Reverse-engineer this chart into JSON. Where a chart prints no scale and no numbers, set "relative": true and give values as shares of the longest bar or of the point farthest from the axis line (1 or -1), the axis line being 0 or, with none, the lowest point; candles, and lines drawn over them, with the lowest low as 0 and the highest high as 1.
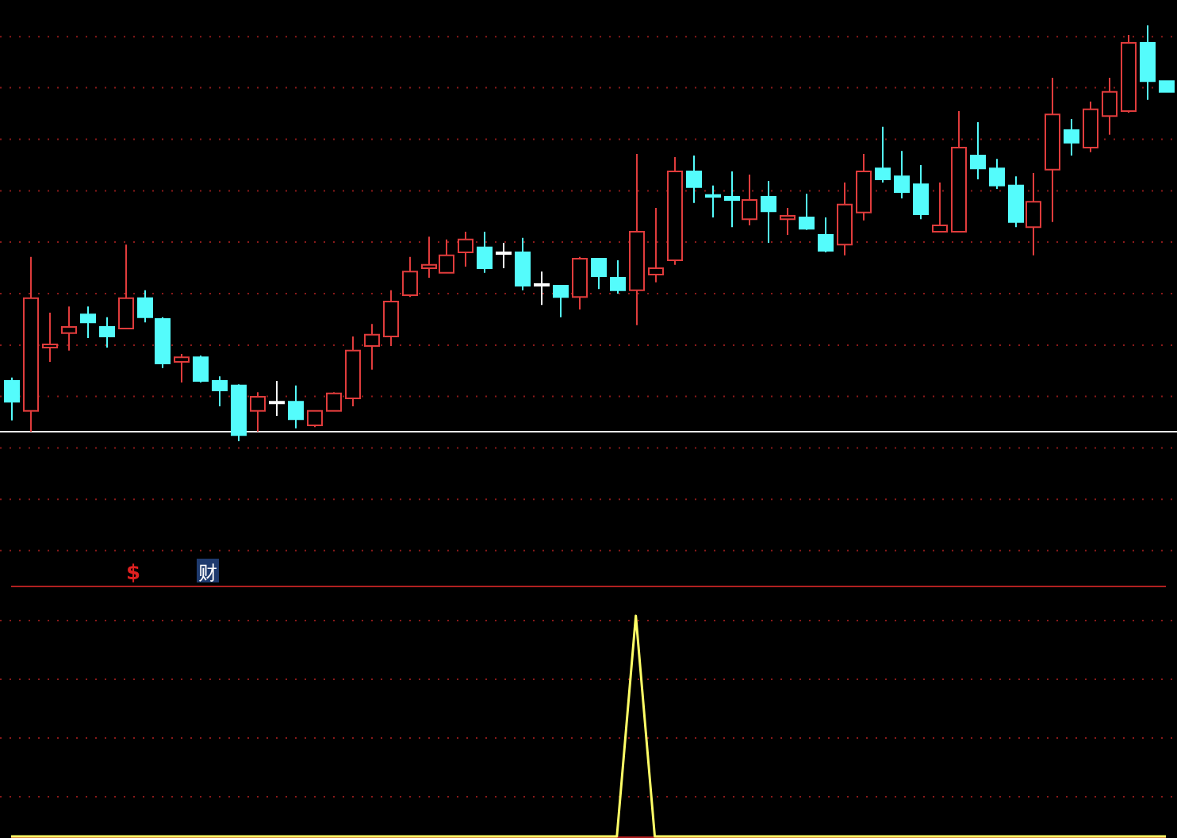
{
  "chart_data": [
    {
      "type": "candlestick",
      "relative": true,
      "categories": [
        null,
        null,
        null,
        null,
        null,
        null,
        null,
        null,
        null,
        null,
        null,
        null,
        null,
        null,
        null,
        null,
        null,
        null,
        null,
        null,
        null,
        null,
        null,
        null,
        null,
        null,
        null,
        null,
        null,
        null,
        null,
        null,
        null,
        null,
        null,
        null,
        null,
        null,
        null,
        null,
        null,
        null,
        null,
        null,
        null,
        null,
        null,
        null,
        null,
        null,
        null,
        null,
        null,
        null,
        null,
        null,
        null,
        null,
        null,
        null,
        null,
        null
      ],
      "ohlc": [
        [
          0.145,
          0.153,
          0.05,
          0.095
        ],
        [
          0.073,
          0.443,
          0.023,
          0.344
        ],
        [
          0.225,
          0.309,
          0.191,
          0.233
        ],
        [
          0.26,
          0.324,
          0.218,
          0.275
        ],
        [
          0.305,
          0.324,
          0.248,
          0.286
        ],
        [
          0.275,
          0.298,
          0.225,
          0.252
        ],
        [
          0.271,
          0.473,
          0.271,
          0.344
        ],
        [
          0.344,
          0.363,
          0.286,
          0.298
        ],
        [
          0.294,
          0.298,
          0.176,
          0.187
        ],
        [
          0.191,
          0.21,
          0.141,
          0.202
        ],
        [
          0.202,
          0.206,
          0.141,
          0.145
        ],
        [
          0.145,
          0.156,
          0.084,
          0.122
        ],
        [
          0.134,
          0.137,
          0,
          0.015
        ],
        [
          0.073,
          0.118,
          0.023,
          0.107
        ],
        [
          0.095,
          0.145,
          0.061,
          0.095
        ],
        [
          0.095,
          0.134,
          0.031,
          0.053
        ],
        [
          0.038,
          0.073,
          0.034,
          0.073
        ],
        [
          0.073,
          0.118,
          0.073,
          0.115
        ],
        [
          0.103,
          0.252,
          0.084,
          0.218
        ],
        [
          0.229,
          0.282,
          0.172,
          0.256
        ],
        [
          0.252,
          0.363,
          0.229,
          0.336
        ],
        [
          0.351,
          0.443,
          0.347,
          0.408
        ],
        [
          0.416,
          0.492,
          0.393,
          0.424
        ],
        [
          0.405,
          0.485,
          0.405,
          0.447
        ],
        [
          0.454,
          0.504,
          0.42,
          0.485
        ],
        [
          0.466,
          0.504,
          0.405,
          0.416
        ],
        [
          0.454,
          0.477,
          0.416,
          0.454
        ],
        [
          0.454,
          0.489,
          0.363,
          0.374
        ],
        [
          0.378,
          0.408,
          0.328,
          0.378
        ],
        [
          0.374,
          0.374,
          0.298,
          0.347
        ],
        [
          0.347,
          0.443,
          0.317,
          0.439
        ],
        [
          0.439,
          0.439,
          0.366,
          0.397
        ],
        [
          0.393,
          0.435,
          0.355,
          0.363
        ],
        [
          0.363,
          0.691,
          0.279,
          0.504
        ],
        [
          0.401,
          0.561,
          0.382,
          0.416
        ],
        [
          0.435,
          0.683,
          0.424,
          0.649
        ],
        [
          0.649,
          0.687,
          0.573,
          0.611
        ],
        [
          0.592,
          0.615,
          0.538,
          0.588
        ],
        [
          0.588,
          0.649,
          0.515,
          0.58
        ],
        [
          0.534,
          0.641,
          0.519,
          0.58
        ],
        [
          0.588,
          0.626,
          0.477,
          0.553
        ],
        [
          0.534,
          0.561,
          0.496,
          0.542
        ],
        [
          0.538,
          0.595,
          0.508,
          0.511
        ],
        [
          0.496,
          0.538,
          0.454,
          0.458
        ],
        [
          0.473,
          0.622,
          0.447,
          0.569
        ],
        [
          0.55,
          0.691,
          0.531,
          0.649
        ],
        [
          0.656,
          0.756,
          0.622,
          0.63
        ],
        [
          0.637,
          0.698,
          0.584,
          0.599
        ],
        [
          0.618,
          0.664,
          0.534,
          0.546
        ],
        [
          0.504,
          0.622,
          0.504,
          0.519
        ],
        [
          0.504,
          0.794,
          0.504,
          0.706
        ],
        [
          0.687,
          0.767,
          0.63,
          0.656
        ],
        [
          0.656,
          0.679,
          0.607,
          0.615
        ],
        [
          0.615,
          0.637,
          0.515,
          0.527
        ],
        [
          0.515,
          0.645,
          0.447,
          0.576
        ],
        [
          0.653,
          0.874,
          0.527,
          0.786
        ],
        [
          0.748,
          0.775,
          0.687,
          0.718
        ],
        [
          0.706,
          0.817,
          0.695,
          0.798
        ],
        [
          0.782,
          0.874,
          0.737,
          0.84
        ],
        [
          0.794,
          0.977,
          0.79,
          0.958
        ],
        [
          0.958,
          1,
          0.821,
          0.866
        ],
        [
          0.866,
          0.866,
          0.84,
          0.84
        ]
      ],
      "colors": [
        "#54fcfc",
        "#e03c3c",
        "#e03c3c",
        "#e03c3c",
        "#54fcfc",
        "#54fcfc",
        "#e03c3c",
        "#54fcfc",
        "#54fcfc",
        "#e03c3c",
        "#54fcfc",
        "#54fcfc",
        "#54fcfc",
        "#e03c3c",
        "#ffffff",
        "#54fcfc",
        "#e03c3c",
        "#e03c3c",
        "#e03c3c",
        "#e03c3c",
        "#e03c3c",
        "#e03c3c",
        "#e03c3c",
        "#e03c3c",
        "#e03c3c",
        "#54fcfc",
        "#ffffff",
        "#54fcfc",
        "#ffffff",
        "#54fcfc",
        "#e03c3c",
        "#54fcfc",
        "#54fcfc",
        "#e03c3c",
        "#e03c3c",
        "#e03c3c",
        "#54fcfc",
        "#54fcfc",
        "#54fcfc",
        "#e03c3c",
        "#54fcfc",
        "#e03c3c",
        "#54fcfc",
        "#54fcfc",
        "#e03c3c",
        "#e03c3c",
        "#54fcfc",
        "#54fcfc",
        "#54fcfc",
        "#e03c3c",
        "#e03c3c",
        "#54fcfc",
        "#54fcfc",
        "#54fcfc",
        "#e03c3c",
        "#e03c3c",
        "#54fcfc",
        "#e03c3c",
        "#e03c3c",
        "#e03c3c",
        "#54fcfc",
        "#54fcfc"
      ],
      "ref_lines": [
        {
          "axis": "y",
          "value": 0.023,
          "color": "#e8e8e8"
        },
        {
          "axis": "y",
          "value": -0.263,
          "color": "#8a1a1a",
          "line_style": "dotted"
        },
        {
          "axis": "y",
          "value": -0.14,
          "color": "#8a1a1a",
          "line_style": "dotted"
        },
        {
          "axis": "y",
          "value": -0.016,
          "color": "#8a1a1a",
          "line_style": "dotted"
        },
        {
          "axis": "y",
          "value": 0.108,
          "color": "#8a1a1a",
          "line_style": "dotted"
        },
        {
          "axis": "y",
          "value": 0.231,
          "color": "#8a1a1a",
          "line_style": "dotted"
        },
        {
          "axis": "y",
          "value": 0.355,
          "color": "#8a1a1a",
          "line_style": "dotted"
        },
        {
          "axis": "y",
          "value": 0.479,
          "color": "#8a1a1a",
          "line_style": "dotted"
        },
        {
          "axis": "y",
          "value": 0.602,
          "color": "#8a1a1a",
          "line_style": "dotted"
        },
        {
          "axis": "y",
          "value": 0.726,
          "color": "#8a1a1a",
          "line_style": "dotted"
        },
        {
          "axis": "y",
          "value": 0.85,
          "color": "#8a1a1a",
          "line_style": "dotted"
        },
        {
          "axis": "y",
          "value": 0.973,
          "color": "#8a1a1a",
          "line_style": "dotted"
        }
      ],
      "annotations": [
        "$",
        "财"
      ]
    },
    {
      "type": "line",
      "relative": true,
      "ref_lines": [
        {
          "axis": "y",
          "value": 0.978,
          "color": "#8a1a1a",
          "line_style": "dotted"
        },
        {
          "axis": "y",
          "value": 0.712,
          "color": "#8a1a1a",
          "line_style": "dotted"
        },
        {
          "axis": "y",
          "value": 0.446,
          "color": "#8a1a1a",
          "line_style": "dotted"
        },
        {
          "axis": "y",
          "value": 0.18,
          "color": "#8a1a1a",
          "line_style": "dotted"
        }
      ],
      "categories": [
        null,
        null,
        null,
        null,
        null,
        null,
        null,
        null,
        null,
        null,
        null,
        null,
        null,
        null,
        null,
        null,
        null,
        null,
        null,
        null,
        null,
        null,
        null,
        null,
        null,
        null,
        null,
        null,
        null,
        null,
        null,
        null,
        null,
        null,
        null,
        null,
        null,
        null,
        null,
        null,
        null,
        null,
        null,
        null,
        null,
        null,
        null,
        null,
        null,
        null,
        null,
        null,
        null,
        null,
        null,
        null,
        null,
        null,
        null,
        null,
        null,
        null
      ],
      "series": [
        {
          "color": "#ffff66",
          "values": [
            0,
            0,
            0,
            0,
            0,
            0,
            0,
            0,
            0,
            0,
            0,
            0,
            0,
            0,
            0,
            0,
            0,
            0,
            0,
            0,
            0,
            0,
            0,
            0,
            0,
            0,
            0,
            0,
            0,
            0,
            0,
            0,
            0,
            1,
            0,
            0,
            0,
            0,
            0,
            0,
            0,
            0,
            0,
            0,
            0,
            0,
            0,
            0,
            0,
            0,
            0,
            0,
            0,
            0,
            0,
            0,
            0,
            0,
            0,
            0,
            0,
            0
          ]
        }
      ]
    }
  ]
}
